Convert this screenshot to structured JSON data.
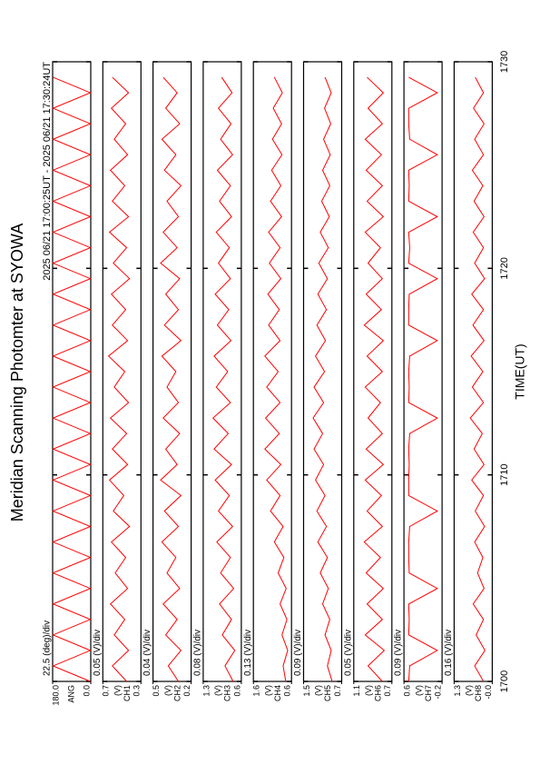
{
  "chart_data": {
    "type": "line",
    "title": "Meridian Scanning Photomter at SYOWA",
    "subtitle": "2025 06/21 17:00:25UT - 2025 06/21 17:30:24UT",
    "xlabel": "TIME(UT)",
    "xlim": [
      1700,
      1730
    ],
    "xticks": [
      1700,
      1710,
      1720,
      1730
    ],
    "x": [
      1700,
      1700.75,
      1701.5,
      1702.25,
      1703,
      1703.75,
      1704.5,
      1705.25,
      1706,
      1706.75,
      1707.5,
      1708.25,
      1709,
      1709.75,
      1710.5,
      1711.25,
      1712,
      1712.75,
      1713.5,
      1714.25,
      1715,
      1715.75,
      1716.5,
      1717.25,
      1718,
      1718.75,
      1719.5,
      1720.25,
      1721,
      1721.75,
      1722.5,
      1723.25,
      1724,
      1724.75,
      1725.5,
      1726.25,
      1727,
      1727.75,
      1728.5,
      1729.25
    ],
    "panels": [
      {
        "label": "ANG",
        "scale": "22.5 (deg)/div",
        "color": "#ff0000",
        "ylim": [
          0,
          180
        ],
        "yticks": [
          {
            "value": 0,
            "label": "0.0"
          },
          {
            "value": 180,
            "label": "180.0"
          }
        ],
        "values": [
          2,
          178,
          2,
          178,
          2,
          178,
          2,
          178,
          2,
          178,
          2,
          178,
          2,
          178,
          2,
          178,
          2,
          178,
          2,
          178,
          2,
          178,
          2,
          178,
          2,
          178,
          2,
          178,
          2,
          178,
          2,
          178,
          2,
          178,
          2,
          178,
          2,
          178,
          2,
          178
        ]
      },
      {
        "label": "CH1",
        "unit": "(V)",
        "scale": "0.05 (V)/div",
        "color": "#ff0000",
        "ylim": [
          0.3,
          0.7
        ],
        "yticks": [
          0.3,
          0.7
        ],
        "values": [
          0.45,
          0.6,
          0.43,
          0.58,
          0.47,
          0.62,
          0.44,
          0.57,
          0.46,
          0.61,
          0.42,
          0.59,
          0.48,
          0.63,
          0.44,
          0.6,
          0.45,
          0.62,
          0.43,
          0.58,
          0.47,
          0.64,
          0.44,
          0.6,
          0.46,
          0.61,
          0.42,
          0.59,
          0.45,
          0.63,
          0.43,
          0.6,
          0.47,
          0.62,
          0.44,
          0.58,
          0.46,
          0.61,
          0.43,
          0.6
        ]
      },
      {
        "label": "CH2",
        "unit": "(V)",
        "scale": "0.04 (V)/div",
        "color": "#ff0000",
        "ylim": [
          0.2,
          0.5
        ],
        "yticks": [
          0.2,
          0.5
        ],
        "values": [
          0.3,
          0.38,
          0.28,
          0.4,
          0.31,
          0.42,
          0.29,
          0.39,
          0.32,
          0.43,
          0.3,
          0.41,
          0.28,
          0.44,
          0.31,
          0.4,
          0.29,
          0.42,
          0.3,
          0.39,
          0.32,
          0.43,
          0.28,
          0.41,
          0.3,
          0.4,
          0.29,
          0.44,
          0.31,
          0.42,
          0.3,
          0.39,
          0.28,
          0.41,
          0.32,
          0.43,
          0.29,
          0.4,
          0.31,
          0.42
        ]
      },
      {
        "label": "CH3",
        "unit": "(V)",
        "scale": "0.08 (V)/div",
        "color": "#ff0000",
        "ylim": [
          0.6,
          1.3
        ],
        "yticks": [
          0.6,
          1.3
        ],
        "values": [
          0.75,
          0.9,
          0.72,
          0.95,
          0.78,
          1.0,
          0.74,
          0.98,
          0.8,
          1.05,
          0.76,
          1.02,
          0.82,
          1.08,
          0.78,
          1.1,
          0.84,
          1.12,
          0.8,
          1.06,
          0.85,
          1.1,
          0.79,
          1.04,
          0.83,
          1.08,
          0.8,
          1.02,
          0.82,
          1.06,
          0.78,
          1.0,
          0.8,
          1.04,
          0.76,
          0.98,
          0.79,
          1.02,
          0.77,
          0.96
        ]
      },
      {
        "label": "CH4",
        "unit": "(V)",
        "scale": "0.13 (V)/div",
        "color": "#ff0000",
        "ylim": [
          0.6,
          1.6
        ],
        "yticks": [
          0.6,
          1.6
        ],
        "values": [
          0.75,
          0.82,
          0.7,
          0.85,
          0.72,
          0.9,
          0.74,
          0.95,
          0.8,
          1.05,
          0.82,
          1.15,
          0.9,
          1.25,
          0.88,
          1.3,
          0.92,
          1.28,
          0.9,
          1.25,
          0.95,
          1.3,
          0.9,
          1.2,
          0.92,
          1.22,
          0.88,
          1.18,
          0.9,
          1.2,
          0.86,
          1.15,
          0.88,
          1.12,
          0.85,
          1.1,
          0.86,
          1.08,
          0.84,
          1.05
        ]
      },
      {
        "label": "CH5",
        "unit": "(V)",
        "scale": "0.09 (V)/div",
        "color": "#ff0000",
        "ylim": [
          0.7,
          1.5
        ],
        "yticks": [
          0.7,
          1.5
        ],
        "values": [
          0.9,
          1.0,
          0.92,
          1.05,
          0.95,
          1.1,
          0.98,
          1.15,
          1.0,
          1.2,
          1.02,
          1.22,
          1.05,
          1.25,
          1.08,
          1.28,
          1.1,
          1.3,
          1.08,
          1.28,
          1.06,
          1.25,
          1.04,
          1.22,
          1.02,
          1.2,
          1.0,
          1.18,
          0.98,
          1.15,
          0.96,
          1.12,
          0.95,
          1.1,
          0.94,
          1.08,
          0.93,
          1.06,
          0.92,
          1.05
        ]
      },
      {
        "label": "CH6",
        "unit": "(V)",
        "scale": "0.05 (V)/div",
        "color": "#ff0000",
        "ylim": [
          0.7,
          1.1
        ],
        "yticks": [
          0.7,
          1.1
        ],
        "values": [
          0.8,
          0.95,
          0.78,
          0.98,
          0.8,
          0.96,
          0.79,
          0.97,
          0.82,
          0.99,
          0.8,
          0.96,
          0.81,
          0.98,
          0.79,
          0.97,
          0.8,
          0.95,
          0.82,
          0.98,
          0.8,
          0.96,
          0.79,
          0.99,
          0.81,
          0.97,
          0.8,
          0.95,
          0.82,
          0.98,
          0.79,
          0.96,
          0.8,
          0.97,
          0.81,
          0.98,
          0.8,
          0.95,
          0.79,
          0.96
        ]
      },
      {
        "label": "CH7",
        "unit": "(V)",
        "scale": "0.09 (V)/div",
        "color": "#ff0000",
        "ylim": [
          -0.2,
          0.6
        ],
        "yticks": [
          -0.2,
          0.6
        ],
        "values": [
          0.5,
          0.48,
          -0.1,
          0.5,
          0.49,
          0.5,
          -0.1,
          0.49,
          0.5,
          0.5,
          0.48,
          -0.1,
          0.5,
          0.5,
          0.49,
          0.5,
          0.48,
          -0.1,
          0.5,
          0.49,
          0.5,
          0.48,
          -0.1,
          0.5,
          0.5,
          0.49,
          -0.1,
          0.5,
          0.48,
          0.5,
          -0.1,
          0.5,
          0.49,
          0.5,
          -0.1,
          0.48,
          0.5,
          0.5,
          -0.1,
          0.5
        ]
      },
      {
        "label": "CH8",
        "unit": "(V)",
        "scale": "0.16 (V)/div",
        "color": "#ff0000",
        "ylim": [
          0,
          1.3
        ],
        "yticks": [
          {
            "value": 0,
            "label": "-0.0"
          },
          1.3
        ],
        "values": [
          0.3,
          0.6,
          0.25,
          0.55,
          0.3,
          0.65,
          0.28,
          0.5,
          0.32,
          0.6,
          0.26,
          0.58,
          0.3,
          0.7,
          0.28,
          0.62,
          0.34,
          0.75,
          0.3,
          0.68,
          0.32,
          0.72,
          0.28,
          0.66,
          0.3,
          0.7,
          0.26,
          0.6,
          0.3,
          0.65,
          0.28,
          0.62,
          0.32,
          0.68,
          0.3,
          0.6,
          0.28,
          0.64,
          0.3,
          0.58
        ]
      }
    ]
  }
}
